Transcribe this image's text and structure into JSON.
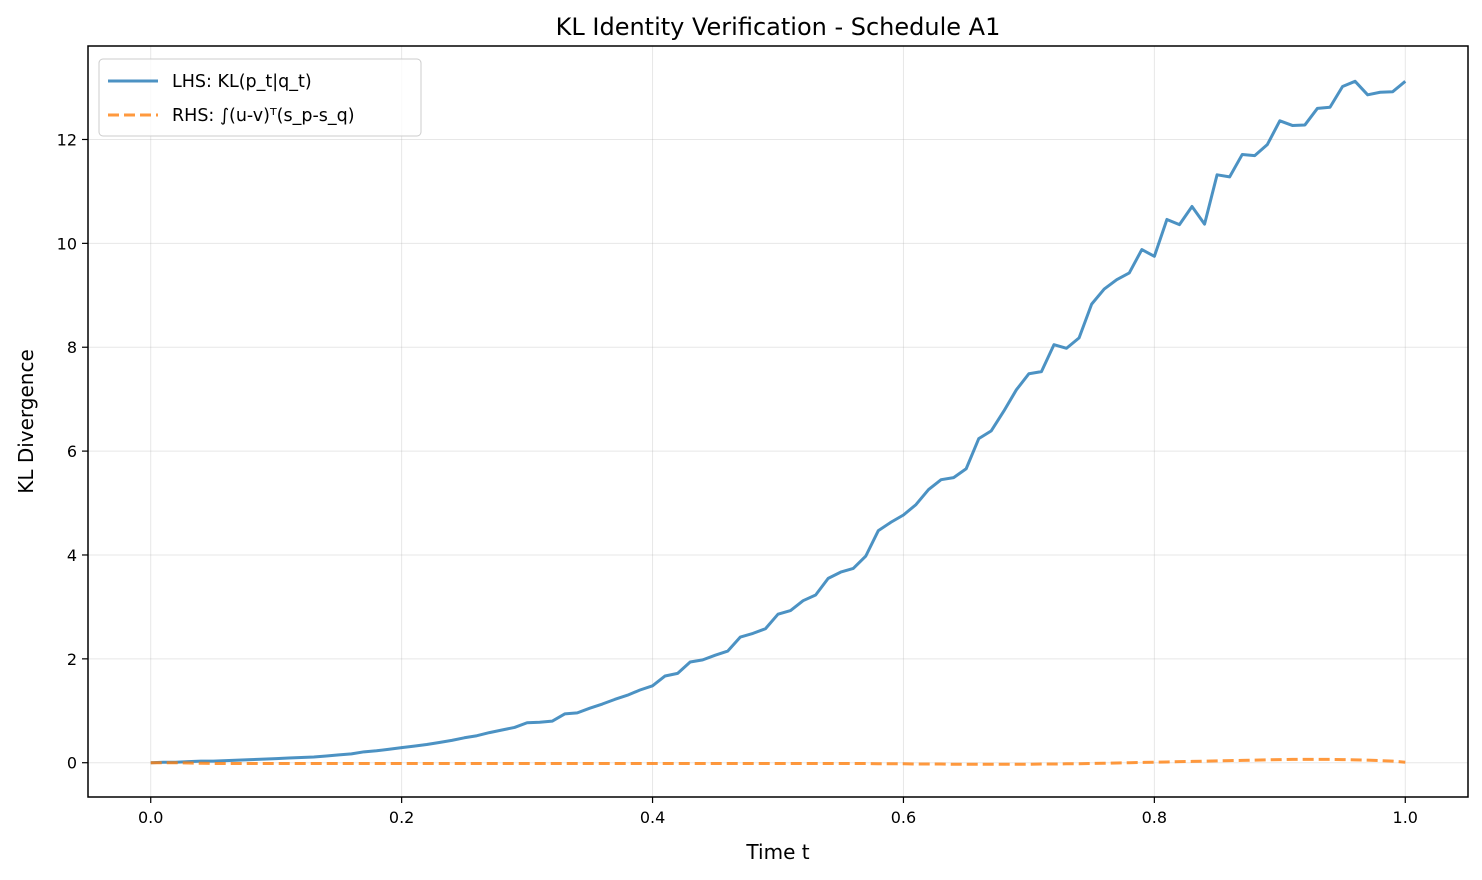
{
  "chart_data": {
    "type": "line",
    "title": "KL Identity Verification - Schedule A1",
    "xlabel": "Time t",
    "ylabel": "KL Divergence",
    "xlim": [
      -0.05,
      1.05
    ],
    "ylim": [
      -0.66,
      13.8
    ],
    "xticks": [
      0.0,
      0.2,
      0.4,
      0.6,
      0.8,
      1.0
    ],
    "xtick_labels": [
      "0.0",
      "0.2",
      "0.4",
      "0.6",
      "0.8",
      "1.0"
    ],
    "yticks": [
      0,
      2,
      4,
      6,
      8,
      10,
      12
    ],
    "ytick_labels": [
      "0",
      "2",
      "4",
      "6",
      "8",
      "10",
      "12"
    ],
    "grid": true,
    "legend_position": "top-left",
    "x": [
      0.0,
      0.01,
      0.02,
      0.03,
      0.04,
      0.05,
      0.06,
      0.07,
      0.08,
      0.09,
      0.1,
      0.11,
      0.12,
      0.13,
      0.14,
      0.15,
      0.16,
      0.17,
      0.18,
      0.19,
      0.2,
      0.21,
      0.22,
      0.23,
      0.24,
      0.25,
      0.26,
      0.27,
      0.28,
      0.29,
      0.3,
      0.31,
      0.32,
      0.33,
      0.34,
      0.35,
      0.36,
      0.37,
      0.38,
      0.39,
      0.4,
      0.41,
      0.42,
      0.43,
      0.44,
      0.45,
      0.46,
      0.47,
      0.48,
      0.49,
      0.5,
      0.51,
      0.52,
      0.53,
      0.54,
      0.55,
      0.56,
      0.57,
      0.58,
      0.59,
      0.6,
      0.61,
      0.62,
      0.63,
      0.64,
      0.65,
      0.66,
      0.67,
      0.68,
      0.69,
      0.7,
      0.71,
      0.72,
      0.73,
      0.74,
      0.75,
      0.76,
      0.77,
      0.78,
      0.79,
      0.8,
      0.81,
      0.82,
      0.83,
      0.84,
      0.85,
      0.86,
      0.87,
      0.88,
      0.89,
      0.9,
      0.91,
      0.92,
      0.93,
      0.94,
      0.95,
      0.96,
      0.97,
      0.98,
      0.99,
      1.0
    ],
    "series": [
      {
        "name": "LHS: KL(p_t|q_t)",
        "color": "#1f77b4",
        "style": "solid",
        "values": [
          0.0,
          0.01,
          0.01,
          0.02,
          0.03,
          0.03,
          0.04,
          0.05,
          0.06,
          0.07,
          0.08,
          0.09,
          0.1,
          0.11,
          0.13,
          0.15,
          0.17,
          0.21,
          0.23,
          0.26,
          0.29,
          0.32,
          0.35,
          0.39,
          0.43,
          0.48,
          0.52,
          0.58,
          0.63,
          0.68,
          0.77,
          0.78,
          0.8,
          0.94,
          0.96,
          1.05,
          1.13,
          1.22,
          1.3,
          1.4,
          1.48,
          1.67,
          1.72,
          1.94,
          1.98,
          2.07,
          2.15,
          2.42,
          2.49,
          2.58,
          2.86,
          2.93,
          3.12,
          3.23,
          3.55,
          3.67,
          3.74,
          3.98,
          4.47,
          4.63,
          4.77,
          4.97,
          5.26,
          5.45,
          5.49,
          5.66,
          6.24,
          6.39,
          6.77,
          7.18,
          7.49,
          7.53,
          8.05,
          7.98,
          8.18,
          8.83,
          9.12,
          9.3,
          9.43,
          9.88,
          9.75,
          10.46,
          10.36,
          10.71,
          10.37,
          11.32,
          11.28,
          11.71,
          11.69,
          11.9,
          12.36,
          12.27,
          12.28,
          12.6,
          12.62,
          13.02,
          13.12,
          12.86,
          12.91,
          12.92,
          13.12
        ]
      },
      {
        "name": "RHS: ∫(u-v)ᵀ(s_p-s_q)",
        "color": "#ff7f0e",
        "style": "dashed",
        "values": [
          0.0,
          0.0,
          0.0,
          -0.005,
          -0.01,
          -0.015,
          -0.015,
          -0.015,
          -0.015,
          -0.015,
          -0.015,
          -0.015,
          -0.015,
          -0.015,
          -0.015,
          -0.015,
          -0.015,
          -0.015,
          -0.015,
          -0.015,
          -0.015,
          -0.015,
          -0.015,
          -0.015,
          -0.015,
          -0.015,
          -0.015,
          -0.015,
          -0.015,
          -0.015,
          -0.015,
          -0.015,
          -0.015,
          -0.015,
          -0.015,
          -0.015,
          -0.015,
          -0.015,
          -0.015,
          -0.015,
          -0.015,
          -0.015,
          -0.015,
          -0.015,
          -0.015,
          -0.015,
          -0.015,
          -0.015,
          -0.015,
          -0.015,
          -0.015,
          -0.015,
          -0.015,
          -0.015,
          -0.015,
          -0.015,
          -0.015,
          -0.015,
          -0.02,
          -0.02,
          -0.02,
          -0.025,
          -0.025,
          -0.025,
          -0.03,
          -0.03,
          -0.03,
          -0.03,
          -0.03,
          -0.03,
          -0.03,
          -0.025,
          -0.025,
          -0.02,
          -0.02,
          -0.015,
          -0.01,
          -0.005,
          0.0,
          0.005,
          0.01,
          0.015,
          0.02,
          0.025,
          0.03,
          0.035,
          0.04,
          0.045,
          0.05,
          0.055,
          0.06,
          0.065,
          0.065,
          0.065,
          0.065,
          0.06,
          0.055,
          0.05,
          0.04,
          0.03,
          0.01
        ]
      }
    ]
  }
}
